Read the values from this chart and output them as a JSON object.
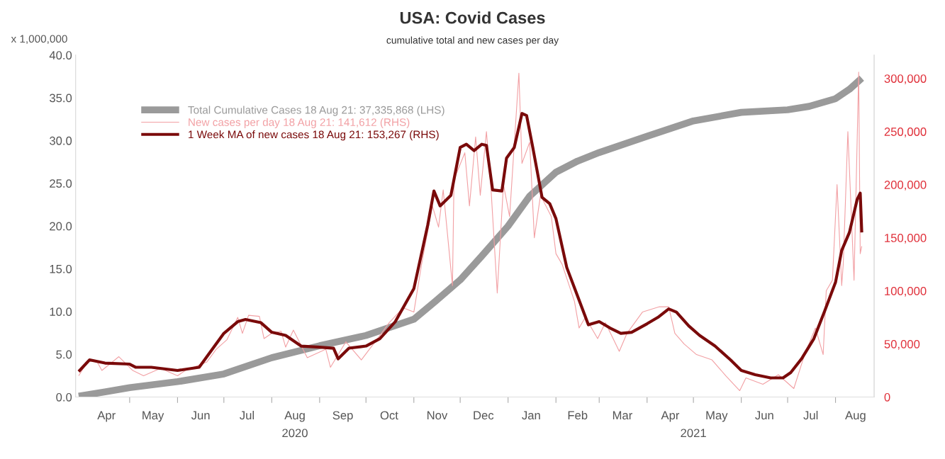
{
  "chart_data": {
    "type": "line",
    "title": "USA: Covid Cases",
    "subtitle": "cumulative total and new cases per day",
    "ylabel": "x 1,000,000",
    "xlim": [
      "2020-03-27",
      "2021-08-26"
    ],
    "xticks": [
      {
        "value": "2020-04-16",
        "label": "Apr"
      },
      {
        "value": "2020-05-01",
        "label": null
      },
      {
        "value": "2020-05-16",
        "label": "May"
      },
      {
        "value": "2020-06-01",
        "label": null
      },
      {
        "value": "2020-06-16",
        "label": "Jun"
      },
      {
        "value": "2020-07-01",
        "label": null
      },
      {
        "value": "2020-07-16",
        "label": "Jul"
      },
      {
        "value": "2020-08-01",
        "label": null
      },
      {
        "value": "2020-08-16",
        "label": "Aug"
      },
      {
        "value": "2020-09-01",
        "label": null
      },
      {
        "value": "2020-09-16",
        "label": "Sep"
      },
      {
        "value": "2020-10-01",
        "label": null
      },
      {
        "value": "2020-10-16",
        "label": "Oct"
      },
      {
        "value": "2020-11-01",
        "label": null
      },
      {
        "value": "2020-11-16",
        "label": "Nov"
      },
      {
        "value": "2020-12-01",
        "label": null
      },
      {
        "value": "2020-12-16",
        "label": "Dec"
      },
      {
        "value": "2021-01-01",
        "label": null
      },
      {
        "value": "2021-01-16",
        "label": "Jan"
      },
      {
        "value": "2021-02-01",
        "label": null
      },
      {
        "value": "2021-02-15",
        "label": "Feb"
      },
      {
        "value": "2021-03-01",
        "label": null
      },
      {
        "value": "2021-03-16",
        "label": "Mar"
      },
      {
        "value": "2021-04-01",
        "label": null
      },
      {
        "value": "2021-04-16",
        "label": "Apr"
      },
      {
        "value": "2021-05-01",
        "label": null
      },
      {
        "value": "2021-05-16",
        "label": "May"
      },
      {
        "value": "2021-06-01",
        "label": null
      },
      {
        "value": "2021-06-16",
        "label": "Jun"
      },
      {
        "value": "2021-07-01",
        "label": null
      },
      {
        "value": "2021-07-16",
        "label": "Jul"
      },
      {
        "value": "2021-08-01",
        "label": null
      },
      {
        "value": "2021-08-14",
        "label": "Aug"
      }
    ],
    "ylim": [
      0,
      40
    ],
    "yticks": [
      {
        "value": 0,
        "label": "0.0"
      },
      {
        "value": 5,
        "label": "5.0"
      },
      {
        "value": 10,
        "label": "10.0"
      },
      {
        "value": 15,
        "label": "15.0"
      },
      {
        "value": 20,
        "label": "20.0"
      },
      {
        "value": 25,
        "label": "25.0"
      },
      {
        "value": 30,
        "label": "30.0"
      },
      {
        "value": 35,
        "label": "35.0"
      },
      {
        "value": 40,
        "label": "40.0"
      }
    ],
    "y2lim": [
      0,
      322000
    ],
    "y2ticks": [
      {
        "value": 0,
        "label": "0"
      },
      {
        "value": 50000,
        "label": "50,000"
      },
      {
        "value": 100000,
        "label": "100,000"
      },
      {
        "value": 150000,
        "label": "150,000"
      },
      {
        "value": 200000,
        "label": "200,000"
      },
      {
        "value": 250000,
        "label": "250,000"
      },
      {
        "value": 300000,
        "label": "300,000"
      }
    ],
    "grid": false,
    "legend": "top left",
    "annotations": [
      "2020",
      "2021"
    ],
    "series": [
      {
        "name": "Total Cumulative Cases 18 Aug 21: 37,335,868 (LHS)",
        "color": "#9a9a9a",
        "x": [
          "2020-03-29",
          "2020-04-15",
          "2020-05-01",
          "2020-06-01",
          "2020-07-01",
          "2020-08-01",
          "2020-09-01",
          "2020-10-01",
          "2020-11-01",
          "2020-11-15",
          "2020-12-01",
          "2020-12-15",
          "2021-01-01",
          "2021-01-15",
          "2021-02-01",
          "2021-02-15",
          "2021-03-01",
          "2021-04-01",
          "2021-05-01",
          "2021-06-01",
          "2021-07-01",
          "2021-07-15",
          "2021-08-01",
          "2021-08-10",
          "2021-08-18"
        ],
        "values": [
          0.1,
          0.6,
          1.1,
          1.8,
          2.7,
          4.6,
          6.0,
          7.2,
          9.1,
          11.2,
          13.7,
          16.5,
          20.0,
          23.5,
          26.3,
          27.6,
          28.6,
          30.5,
          32.3,
          33.3,
          33.6,
          34.0,
          34.9,
          36.0,
          37.3
        ]
      },
      {
        "name": "New cases per day 18 Aug 21: 141,612 (RHS)",
        "color": "#f2a0a4",
        "axis": "y2",
        "x": [
          "2020-03-29",
          "2020-04-04",
          "2020-04-10",
          "2020-04-13",
          "2020-04-24",
          "2020-05-03",
          "2020-05-10",
          "2020-05-21",
          "2020-06-01",
          "2020-06-06",
          "2020-06-20",
          "2020-06-26",
          "2020-07-03",
          "2020-07-10",
          "2020-07-13",
          "2020-07-17",
          "2020-07-24",
          "2020-07-27",
          "2020-08-01",
          "2020-08-07",
          "2020-08-10",
          "2020-08-15",
          "2020-08-24",
          "2020-09-05",
          "2020-09-08",
          "2020-09-18",
          "2020-09-28",
          "2020-10-10",
          "2020-10-16",
          "2020-10-25",
          "2020-11-01",
          "2020-11-06",
          "2020-11-13",
          "2020-11-17",
          "2020-11-20",
          "2020-11-26",
          "2020-11-27",
          "2020-12-04",
          "2020-12-07",
          "2020-12-11",
          "2020-12-14",
          "2020-12-18",
          "2020-12-21",
          "2020-12-25",
          "2020-12-29",
          "2021-01-02",
          "2021-01-08",
          "2021-01-10",
          "2021-01-15",
          "2021-01-18",
          "2021-01-22",
          "2021-01-29",
          "2021-02-01",
          "2021-02-05",
          "2021-02-13",
          "2021-02-16",
          "2021-02-20",
          "2021-02-28",
          "2021-03-05",
          "2021-03-14",
          "2021-03-19",
          "2021-03-29",
          "2021-04-09",
          "2021-04-15",
          "2021-04-19",
          "2021-04-25",
          "2021-05-03",
          "2021-05-13",
          "2021-05-22",
          "2021-05-31",
          "2021-06-04",
          "2021-06-15",
          "2021-06-25",
          "2021-07-05",
          "2021-07-12",
          "2021-07-19",
          "2021-07-24",
          "2021-07-26",
          "2021-07-30",
          "2021-08-02",
          "2021-08-05",
          "2021-08-06",
          "2021-08-09",
          "2021-08-13",
          "2021-08-16",
          "2021-08-17",
          "2021-08-18"
        ],
        "values": [
          20000,
          34000,
          33000,
          25000,
          38000,
          25000,
          20000,
          27000,
          20000,
          25000,
          33000,
          45000,
          54000,
          75000,
          60000,
          77000,
          76000,
          55000,
          60000,
          62000,
          47000,
          63000,
          37000,
          45000,
          28000,
          52000,
          35000,
          58000,
          70000,
          84000,
          80000,
          125000,
          180000,
          160000,
          195000,
          105000,
          205000,
          230000,
          180000,
          245000,
          190000,
          250000,
          195000,
          98000,
          200000,
          170000,
          305000,
          220000,
          240000,
          150000,
          190000,
          170000,
          135000,
          125000,
          90000,
          65000,
          75000,
          55000,
          70000,
          43000,
          60000,
          80000,
          85000,
          85000,
          60000,
          50000,
          40000,
          35000,
          20000,
          6000,
          18000,
          12000,
          21000,
          8000,
          40000,
          65000,
          40000,
          100000,
          110000,
          200000,
          105000,
          125000,
          250000,
          110000,
          306000,
          135000,
          142000
        ]
      },
      {
        "name": "1 Week MA of new cases 18 Aug 21: 153,267 (RHS)",
        "color": "#7a0a0a",
        "axis": "y2",
        "x": [
          "2020-03-29",
          "2020-04-05",
          "2020-04-15",
          "2020-05-01",
          "2020-05-05",
          "2020-05-15",
          "2020-06-01",
          "2020-06-15",
          "2020-06-20",
          "2020-07-01",
          "2020-07-10",
          "2020-07-15",
          "2020-07-25",
          "2020-08-01",
          "2020-08-10",
          "2020-08-20",
          "2020-09-01",
          "2020-09-10",
          "2020-09-13",
          "2020-09-20",
          "2020-10-01",
          "2020-10-10",
          "2020-10-20",
          "2020-11-01",
          "2020-11-10",
          "2020-11-14",
          "2020-11-18",
          "2020-11-25",
          "2020-12-01",
          "2020-12-05",
          "2020-12-10",
          "2020-12-15",
          "2020-12-18",
          "2020-12-22",
          "2020-12-28",
          "2020-12-31",
          "2021-01-05",
          "2021-01-10",
          "2021-01-13",
          "2021-01-17",
          "2021-01-23",
          "2021-01-28",
          "2021-02-01",
          "2021-02-08",
          "2021-02-15",
          "2021-02-22",
          "2021-03-01",
          "2021-03-08",
          "2021-03-15",
          "2021-03-22",
          "2021-04-01",
          "2021-04-08",
          "2021-04-15",
          "2021-04-20",
          "2021-04-28",
          "2021-05-05",
          "2021-05-15",
          "2021-05-25",
          "2021-06-01",
          "2021-06-10",
          "2021-06-20",
          "2021-06-28",
          "2021-07-03",
          "2021-07-10",
          "2021-07-18",
          "2021-07-25",
          "2021-08-01",
          "2021-08-05",
          "2021-08-10",
          "2021-08-15",
          "2021-08-17",
          "2021-08-18"
        ],
        "values": [
          24000,
          35000,
          32000,
          31000,
          28000,
          28000,
          25000,
          28000,
          38000,
          60000,
          71000,
          73000,
          70000,
          61000,
          58000,
          48000,
          47000,
          46000,
          36000,
          46000,
          48000,
          55000,
          71000,
          102000,
          162000,
          194000,
          180000,
          190000,
          235000,
          238000,
          232000,
          238000,
          237000,
          195000,
          194000,
          225000,
          235000,
          267000,
          265000,
          235000,
          188000,
          182000,
          168000,
          122000,
          95000,
          68000,
          71000,
          65000,
          60000,
          61000,
          69000,
          75000,
          83000,
          80000,
          67000,
          58000,
          48000,
          35000,
          25000,
          21000,
          18000,
          18000,
          23000,
          36000,
          55000,
          81000,
          108000,
          138000,
          155000,
          186000,
          192000,
          155000
        ]
      }
    ]
  }
}
